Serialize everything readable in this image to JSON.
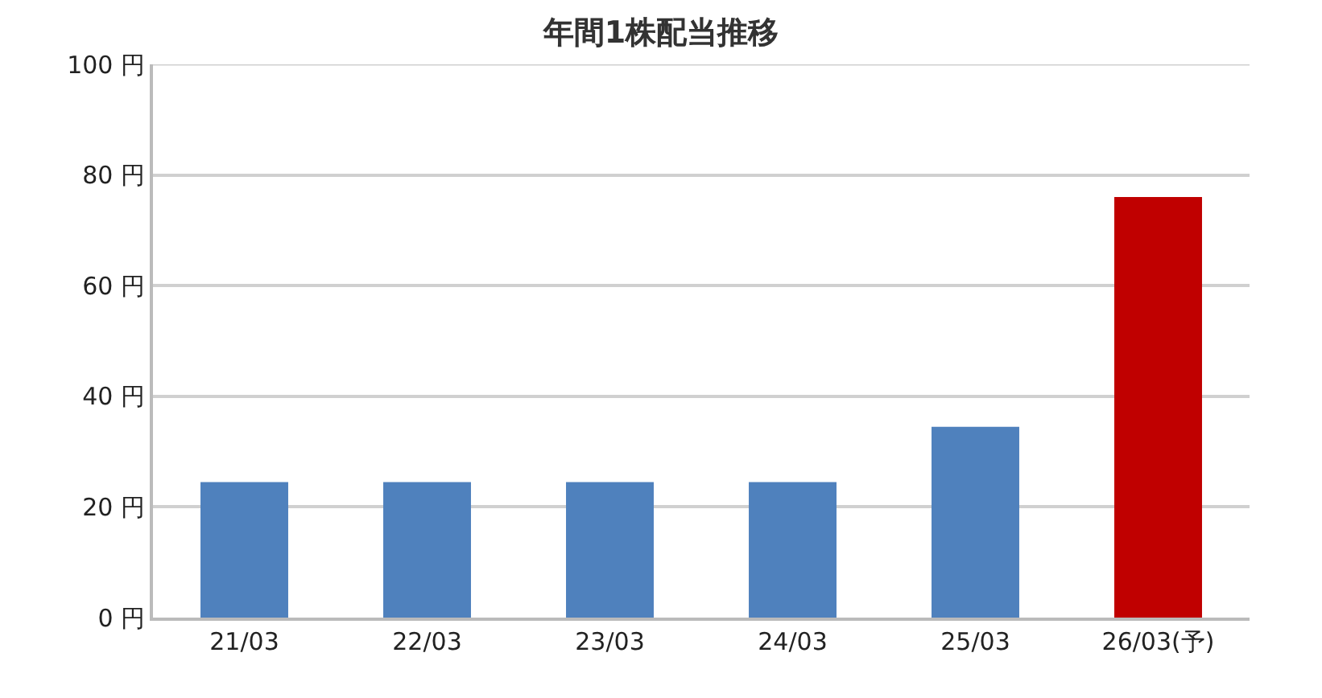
{
  "chart_data": {
    "type": "bar",
    "title": "年間1株配当推移",
    "categories": [
      "21/03",
      "22/03",
      "23/03",
      "24/03",
      "25/03",
      "26/03(予)"
    ],
    "values": [
      24.5,
      24.5,
      24.5,
      24.5,
      34.5,
      76
    ],
    "colors": [
      "#4f81bd",
      "#4f81bd",
      "#4f81bd",
      "#4f81bd",
      "#4f81bd",
      "#c00000"
    ],
    "ylim": [
      0,
      100
    ],
    "yticks": [
      {
        "value": 0,
        "label": "0 円"
      },
      {
        "value": 20,
        "label": "20 円"
      },
      {
        "value": 40,
        "label": "40 円"
      },
      {
        "value": 60,
        "label": "60 円"
      },
      {
        "value": 80,
        "label": "80 円"
      },
      {
        "value": 100,
        "label": "100 円"
      }
    ],
    "grid": "y"
  }
}
